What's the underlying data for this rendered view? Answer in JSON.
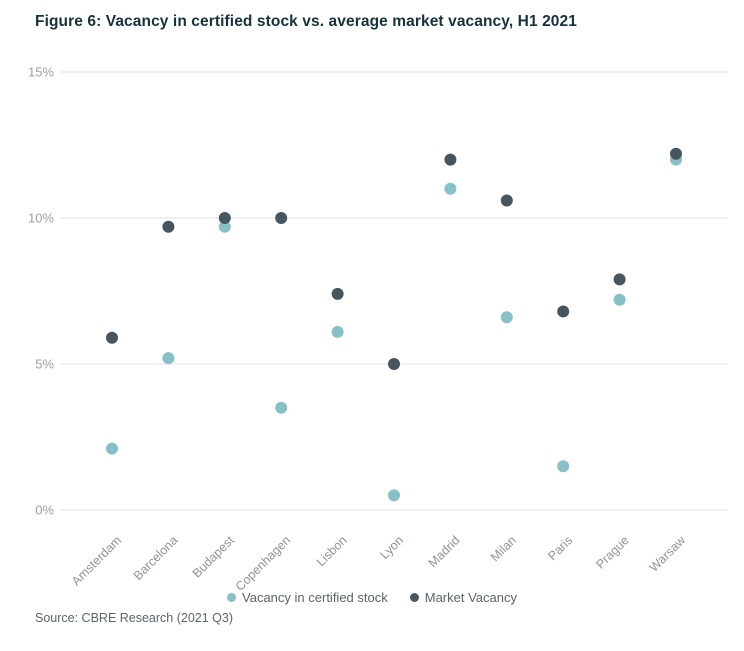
{
  "title": "Figure 6: Vacancy in certified stock vs. average market vacancy, H1 2021",
  "source": "Source: CBRE Research (2021 Q3)",
  "colors": {
    "certified": "#87c0c7",
    "market": "#47555f",
    "title_text": "#16323c",
    "grid_line": "#ebebeb",
    "tick_label": "#9aa1a4",
    "category_label": "#8d9497",
    "legend_text": "#5a6468",
    "source_text": "#5b6569",
    "background": "#ffffff"
  },
  "chart_data": {
    "type": "scatter",
    "categories": [
      "Amsterdam",
      "Barcelona",
      "Budapest",
      "Copenhagen",
      "Lisbon",
      "Lyon",
      "Madrid",
      "Milan",
      "Paris",
      "Prague",
      "Warsaw"
    ],
    "series": [
      {
        "name": "Vacancy in certified stock",
        "color_key": "certified",
        "values": [
          2.1,
          5.2,
          9.7,
          3.5,
          6.1,
          0.5,
          11.0,
          6.6,
          1.5,
          7.2,
          12.0
        ]
      },
      {
        "name": "Market Vacancy",
        "color_key": "market",
        "values": [
          5.9,
          9.7,
          10.0,
          10.0,
          7.4,
          5.0,
          12.0,
          10.6,
          6.8,
          7.9,
          12.2
        ]
      }
    ],
    "title": "Figure 6: Vacancy in certified stock vs. average market vacancy, H1 2021",
    "xlabel": "",
    "ylabel": "",
    "y_ticks": [
      0,
      5,
      10,
      15
    ],
    "y_tick_labels": [
      "0%",
      "5%",
      "10%",
      "15%"
    ],
    "ylim": [
      0,
      15
    ],
    "grid": true,
    "legend_position": "bottom"
  }
}
